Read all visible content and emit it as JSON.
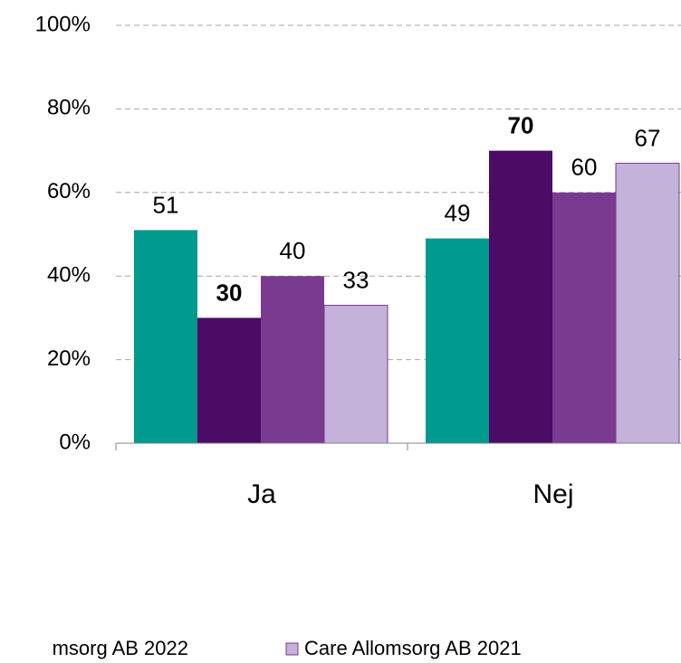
{
  "chart_data": {
    "type": "bar",
    "categories": [
      "Ja",
      "Nej"
    ],
    "series": [
      {
        "color": "#009a8f",
        "values": [
          51,
          49
        ]
      },
      {
        "color": "#4b0b66",
        "values": [
          30,
          70
        ],
        "label_bold": true
      },
      {
        "name": "msorg AB 2022",
        "color": "#793a90",
        "values": [
          40,
          60
        ]
      },
      {
        "name": "Care Allomsorg AB 2021",
        "color": "#c4b2da",
        "values": [
          33,
          67
        ]
      }
    ],
    "ylim": [
      0,
      100
    ],
    "yticks": [
      {
        "value": 0,
        "label": "0%"
      },
      {
        "value": 20,
        "label": "20%"
      },
      {
        "value": 40,
        "label": "40%"
      },
      {
        "value": 60,
        "label": "60%"
      },
      {
        "value": 80,
        "label": "80%"
      },
      {
        "value": 100,
        "label": "100%"
      }
    ],
    "grid": true
  }
}
